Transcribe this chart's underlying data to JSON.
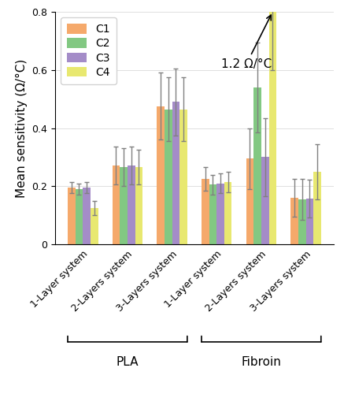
{
  "ylabel": "Mean sensitivity (Ω/°C)",
  "ylim": [
    0,
    0.8
  ],
  "yticks": [
    0,
    0.2,
    0.4,
    0.6,
    0.8
  ],
  "bar_colors": [
    "#F5A96B",
    "#82C882",
    "#A48CC8",
    "#E8E870"
  ],
  "series_labels": [
    "C1",
    "C2",
    "C3",
    "C4"
  ],
  "values": [
    [
      0.195,
      0.19,
      0.195,
      0.125
    ],
    [
      0.27,
      0.265,
      0.27,
      0.265
    ],
    [
      0.475,
      0.465,
      0.49,
      0.465
    ],
    [
      0.225,
      0.205,
      0.21,
      0.215
    ],
    [
      0.295,
      0.54,
      0.3,
      0.8
    ],
    [
      0.16,
      0.155,
      0.158,
      0.25
    ]
  ],
  "errors": [
    [
      0.02,
      0.02,
      0.02,
      0.025
    ],
    [
      0.065,
      0.065,
      0.065,
      0.06
    ],
    [
      0.115,
      0.11,
      0.115,
      0.11
    ],
    [
      0.04,
      0.035,
      0.035,
      0.035
    ],
    [
      0.105,
      0.155,
      0.135,
      0.2
    ],
    [
      0.065,
      0.07,
      0.065,
      0.095
    ]
  ],
  "group_labels": [
    "1-Layer system",
    "2-Layers system",
    "3-Layers system",
    "1-Layer system",
    "2-Layers system",
    "3-Layers system"
  ],
  "pla_label": "PLA",
  "fibroin_label": "Fibroin",
  "annotation_text": "1.2 Ω/°C",
  "bar_width": 0.17,
  "pla_centers": [
    0.0,
    1.0,
    2.0
  ],
  "fibroin_centers": [
    3.0,
    4.0,
    5.0
  ],
  "background_color": "#ffffff",
  "legend_fontsize": 10,
  "tick_fontsize": 9,
  "label_fontsize": 11,
  "group_label_fontsize": 9,
  "substrate_label_fontsize": 11
}
